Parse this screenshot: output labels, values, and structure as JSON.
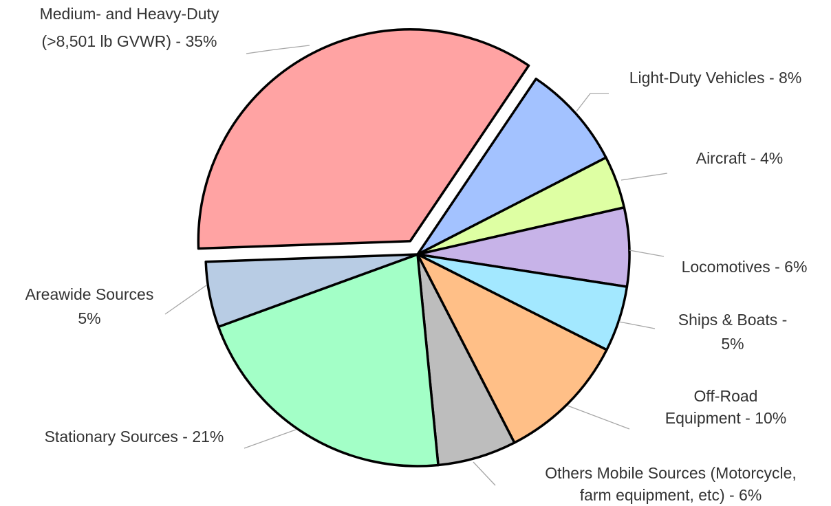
{
  "chart_data": {
    "type": "pie",
    "categories": [
      [
        "Medium- and Heavy-Duty",
        "(>8,501 lb GVWR) - 35%"
      ],
      [
        "Light-Duty Vehicles - 8%"
      ],
      [
        "Aircraft - 4%"
      ],
      [
        "Locomotives - 6%"
      ],
      [
        "Ships & Boats -",
        "5%"
      ],
      [
        "Off-Road",
        "Equipment - 10%"
      ],
      [
        "Others Mobile Sources (Motorcycle,",
        "farm equipment, etc) - 6%"
      ],
      [
        "Stationary Sources - 21%"
      ],
      [
        "Areawide Sources",
        "5%"
      ]
    ],
    "values": [
      35,
      8,
      4,
      6,
      5,
      10,
      6,
      21,
      5
    ],
    "colors": [
      "#ffa3a3",
      "#a3c2ff",
      "#deffa3",
      "#c7b3e8",
      "#a3e8ff",
      "#ffbf87",
      "#bdbdbd",
      "#a3ffc7",
      "#b8cce4"
    ]
  }
}
